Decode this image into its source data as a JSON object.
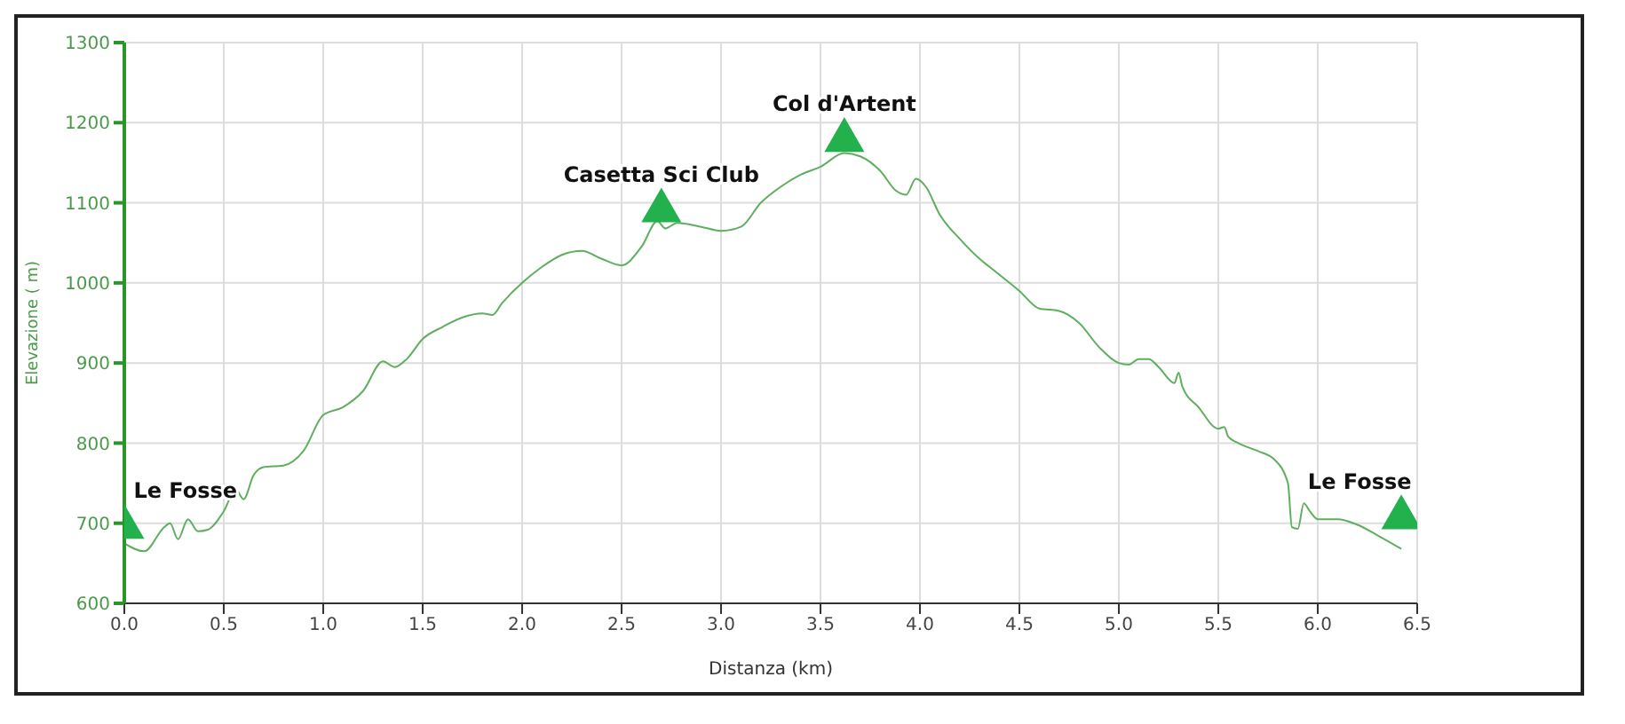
{
  "chart_data": {
    "type": "line",
    "xlabel": "Distanza (km)",
    "ylabel": "Elevazione ( m)",
    "xlim": [
      0,
      6.5
    ],
    "xticks": [
      {
        "value": 0,
        "label": "0.0"
      },
      0.5,
      {
        "value": 1,
        "label": "1.0"
      },
      1.5,
      {
        "value": 2,
        "label": "2.0"
      },
      2.5,
      {
        "value": 3,
        "label": "3.0"
      },
      3.5,
      {
        "value": 4,
        "label": "4.0"
      },
      4.5,
      {
        "value": 5,
        "label": "5.0"
      },
      5.5,
      {
        "value": 6,
        "label": "6.0"
      },
      6.5
    ],
    "ylim": [
      600,
      1300
    ],
    "yticks": [
      600,
      700,
      800,
      900,
      1000,
      1100,
      1200,
      1300
    ],
    "grid": true,
    "legend": false,
    "marker": "none",
    "line_style": "solid",
    "series": [
      {
        "color": "#5fae5f",
        "x": [
          0,
          0.1,
          0.2,
          0.23,
          0.27,
          0.32,
          0.37,
          0.42,
          0.5,
          0.56,
          0.6,
          0.65,
          0.7,
          0.8,
          0.9,
          1.0,
          1.1,
          1.2,
          1.3,
          1.36,
          1.42,
          1.5,
          1.6,
          1.7,
          1.8,
          1.85,
          1.9,
          2.0,
          2.1,
          2.2,
          2.3,
          2.4,
          2.5,
          2.6,
          2.68,
          2.72,
          2.78,
          2.9,
          3.0,
          3.1,
          3.2,
          3.3,
          3.4,
          3.5,
          3.62,
          3.7,
          3.8,
          3.88,
          3.93,
          3.98,
          4.03,
          4.1,
          4.2,
          4.3,
          4.35,
          4.5,
          4.6,
          4.7,
          4.8,
          4.9,
          5.0,
          5.05,
          5.1,
          5.15,
          5.2,
          5.28,
          5.3,
          5.32,
          5.4,
          5.5,
          5.53,
          5.55,
          5.6,
          5.7,
          5.78,
          5.85,
          5.87,
          5.9,
          5.93,
          5.96,
          6.0,
          6.1,
          6.2,
          6.3,
          6.42
        ],
        "values": [
          675,
          665,
          695,
          700,
          680,
          705,
          690,
          692,
          715,
          742,
          730,
          760,
          770,
          772,
          790,
          835,
          845,
          865,
          902,
          895,
          905,
          930,
          945,
          957,
          962,
          960,
          975,
          1000,
          1020,
          1035,
          1040,
          1030,
          1022,
          1045,
          1077,
          1068,
          1075,
          1070,
          1065,
          1070,
          1100,
          1120,
          1135,
          1145,
          1162,
          1158,
          1140,
          1115,
          1110,
          1130,
          1120,
          1085,
          1055,
          1030,
          1020,
          990,
          968,
          965,
          950,
          920,
          900,
          898,
          905,
          905,
          895,
          875,
          888,
          870,
          845,
          818,
          820,
          808,
          800,
          790,
          780,
          750,
          695,
          693,
          725,
          715,
          705,
          705,
          698,
          685,
          668
        ]
      },
      {
        "type": "scatter",
        "marker": "triangle",
        "color": "#22b14c",
        "x": [
          0,
          2.7,
          3.62,
          6.42
        ],
        "values": [
          695,
          1090,
          1178,
          707
        ]
      }
    ],
    "annotations": [
      {
        "text": "Le Fosse",
        "x": 0,
        "y": 695
      },
      {
        "text": "Casetta Sci Club",
        "x": 2.7,
        "y": 1090
      },
      {
        "text": "Col d'Artent",
        "x": 3.62,
        "y": 1178
      },
      {
        "text": "Le Fosse",
        "x": 6.42,
        "y": 707
      }
    ]
  }
}
